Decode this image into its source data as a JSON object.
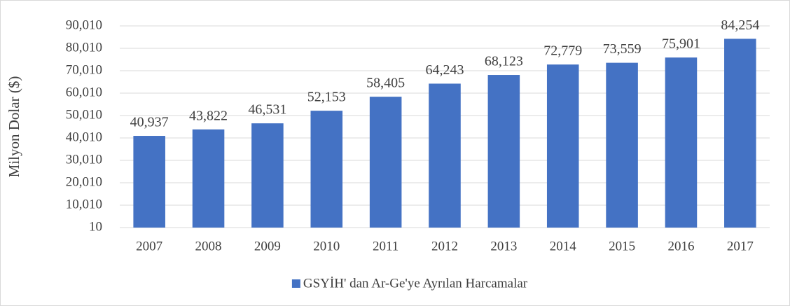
{
  "chart_data": {
    "type": "bar",
    "y_label": "Milyon Dolar ($)",
    "categories": [
      "2007",
      "2008",
      "2009",
      "2010",
      "2011",
      "2012",
      "2013",
      "2014",
      "2015",
      "2016",
      "2017"
    ],
    "series": [
      {
        "name": "GSYİH' dan Ar-Ge'ye Ayrılan Harcamalar",
        "color": "#4472c4",
        "values": [
          40937,
          43822,
          46531,
          52153,
          58405,
          64243,
          68123,
          72779,
          73559,
          75901,
          84254
        ],
        "value_labels": [
          "40,937",
          "43,822",
          "46,531",
          "52,153",
          "58,405",
          "64,243",
          "68,123",
          "72,779",
          "73,559",
          "75,901",
          "84,254"
        ]
      }
    ],
    "ylim": [
      10,
      90010
    ],
    "yticks": [
      10,
      {
        "value": 10010,
        "label": "10,010"
      },
      {
        "value": 20010,
        "label": "20,010"
      },
      {
        "value": 30010,
        "label": "30,010"
      },
      {
        "value": 40010,
        "label": "40,010"
      },
      {
        "value": 50010,
        "label": "50,010"
      },
      {
        "value": 60010,
        "label": "60,010"
      },
      {
        "value": 70010,
        "label": "70,010"
      },
      {
        "value": 80010,
        "label": "80,010"
      },
      {
        "value": 90010,
        "label": "90,010"
      }
    ],
    "grid": true,
    "legend": "bottom"
  }
}
